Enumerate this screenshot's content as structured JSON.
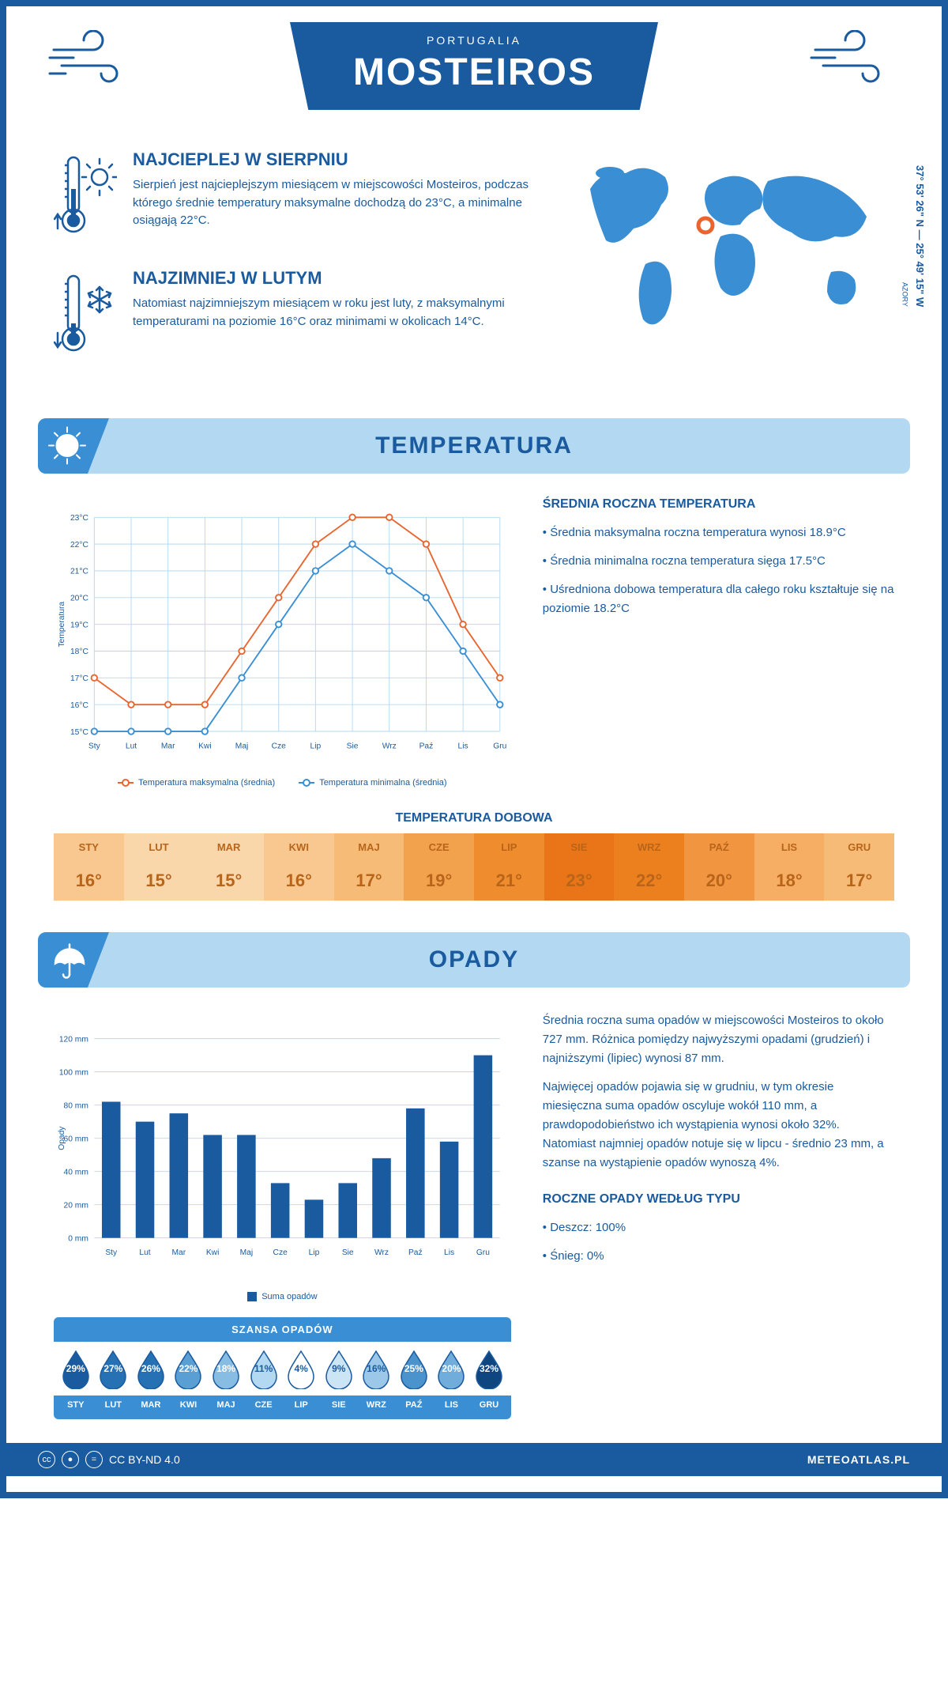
{
  "header": {
    "city": "MOSTEIROS",
    "country": "PORTUGALIA"
  },
  "facts": {
    "warm": {
      "title": "NAJCIEPLEJ W SIERPNIU",
      "text": "Sierpień jest najcieplejszym miesiącem w miejscowości Mosteiros, podczas którego średnie temperatury maksymalne dochodzą do 23°C, a minimalne osiągają 22°C."
    },
    "cold": {
      "title": "NAJZIMNIEJ W LUTYM",
      "text": "Natomiast najzimniejszym miesiącem w roku jest luty, z maksymalnymi temperaturami na poziomie 16°C oraz minimami w okolicach 14°C."
    }
  },
  "map": {
    "region": "AZORY",
    "coords": "37° 53' 26\" N — 25° 49' 15\" W",
    "marker": {
      "cx_pct": 43,
      "cy_pct": 40
    }
  },
  "sections": {
    "temperature": "TEMPERATURA",
    "precipitation": "OPADY"
  },
  "temp_chart": {
    "type": "line",
    "months": [
      "Sty",
      "Lut",
      "Mar",
      "Kwi",
      "Maj",
      "Cze",
      "Lip",
      "Sie",
      "Wrz",
      "Paź",
      "Lis",
      "Gru"
    ],
    "ylabel": "Temperatura",
    "ylim": [
      15,
      23
    ],
    "ytick_step": 1,
    "ytick_suffix": "°C",
    "grid_color": "#b3d9f2",
    "background_color": "#ffffff",
    "series": [
      {
        "name": "Temperatura maksymalna (średnia)",
        "color": "#e8652e",
        "values": [
          17,
          16,
          16,
          16,
          18,
          20,
          22,
          23,
          23,
          22,
          19,
          17
        ]
      },
      {
        "name": "Temperatura minimalna (średnia)",
        "color": "#3a8fd4",
        "values": [
          15,
          15,
          15,
          15,
          17,
          19,
          21,
          22,
          21,
          20,
          18,
          16
        ]
      }
    ],
    "line_width": 2,
    "marker_radius": 4
  },
  "temp_info": {
    "title": "ŚREDNIA ROCZNA TEMPERATURA",
    "bullets": [
      "Średnia maksymalna roczna temperatura wynosi 18.9°C",
      "Średnia minimalna roczna temperatura sięga 17.5°C",
      "Uśredniona dobowa temperatura dla całego roku kształtuje się na poziomie 18.2°C"
    ]
  },
  "daily_temp": {
    "title": "TEMPERATURA DOBOWA",
    "months": [
      "STY",
      "LUT",
      "MAR",
      "KWI",
      "MAJ",
      "CZE",
      "LIP",
      "SIE",
      "WRZ",
      "PAŹ",
      "LIS",
      "GRU"
    ],
    "values": [
      "16°",
      "15°",
      "15°",
      "16°",
      "17°",
      "19°",
      "21°",
      "23°",
      "22°",
      "20°",
      "18°",
      "17°"
    ],
    "header_colors": [
      "#f9c891",
      "#fad6ab",
      "#fad6ab",
      "#f9c891",
      "#f7bb78",
      "#f2a14d",
      "#ee8c2e",
      "#ea7518",
      "#ec801f",
      "#f19541",
      "#f5ae63",
      "#f7bb78"
    ],
    "value_colors": [
      "#f9c891",
      "#fad6ab",
      "#fad6ab",
      "#f9c891",
      "#f7bb78",
      "#f2a14d",
      "#ee8c2e",
      "#ea7518",
      "#ec801f",
      "#f19541",
      "#f5ae63",
      "#f7bb78"
    ],
    "text_color": "#b8651a"
  },
  "precip_chart": {
    "type": "bar",
    "months": [
      "Sty",
      "Lut",
      "Mar",
      "Kwi",
      "Maj",
      "Cze",
      "Lip",
      "Sie",
      "Wrz",
      "Paź",
      "Lis",
      "Gru"
    ],
    "ylabel": "Opady",
    "ylim": [
      0,
      120
    ],
    "ytick_step": 20,
    "ytick_suffix": " mm",
    "values": [
      82,
      70,
      75,
      62,
      62,
      33,
      23,
      33,
      48,
      78,
      58,
      110
    ],
    "bar_color": "#1a5a9e",
    "grid_color": "#b3d9f2",
    "bar_width": 0.55,
    "legend": "Suma opadów"
  },
  "precip_info": {
    "p1": "Średnia roczna suma opadów w miejscowości Mosteiros to około 727 mm. Różnica pomiędzy najwyższymi opadami (grudzień) i najniższymi (lipiec) wynosi 87 mm.",
    "p2": "Najwięcej opadów pojawia się w grudniu, w tym okresie miesięczna suma opadów oscyluje wokół 110 mm, a prawdopodobieństwo ich wystąpienia wynosi około 32%. Natomiast najmniej opadów notuje się w lipcu - średnio 23 mm, a szanse na wystąpienie opadów wynoszą 4%.",
    "type_title": "ROCZNE OPADY WEDŁUG TYPU",
    "types": [
      "Deszcz: 100%",
      "Śnieg: 0%"
    ]
  },
  "rain_chance": {
    "title": "SZANSA OPADÓW",
    "months": [
      "STY",
      "LUT",
      "MAR",
      "KWI",
      "MAJ",
      "CZE",
      "LIP",
      "SIE",
      "WRZ",
      "PAŹ",
      "LIS",
      "GRU"
    ],
    "percents": [
      29,
      27,
      26,
      22,
      18,
      11,
      4,
      9,
      16,
      25,
      20,
      32
    ],
    "fill_colors": [
      "#1a5a9e",
      "#2670b4",
      "#2670b4",
      "#5a9fd4",
      "#87bce3",
      "#b3d9f2",
      "#ffffff",
      "#cce5f5",
      "#9bc8e8",
      "#4b93cd",
      "#70adda",
      "#0f4680"
    ],
    "text_colors": [
      "#ffffff",
      "#ffffff",
      "#ffffff",
      "#ffffff",
      "#ffffff",
      "#1a5a9e",
      "#1a5a9e",
      "#1a5a9e",
      "#1a5a9e",
      "#ffffff",
      "#ffffff",
      "#ffffff"
    ],
    "stroke": "#1a5a9e"
  },
  "colors": {
    "brand": "#1a5a9e",
    "brand_light": "#3a8fd4",
    "section_bg": "#b3d9f2"
  },
  "footer": {
    "license": "CC BY-ND 4.0",
    "site": "METEOATLAS.PL"
  }
}
